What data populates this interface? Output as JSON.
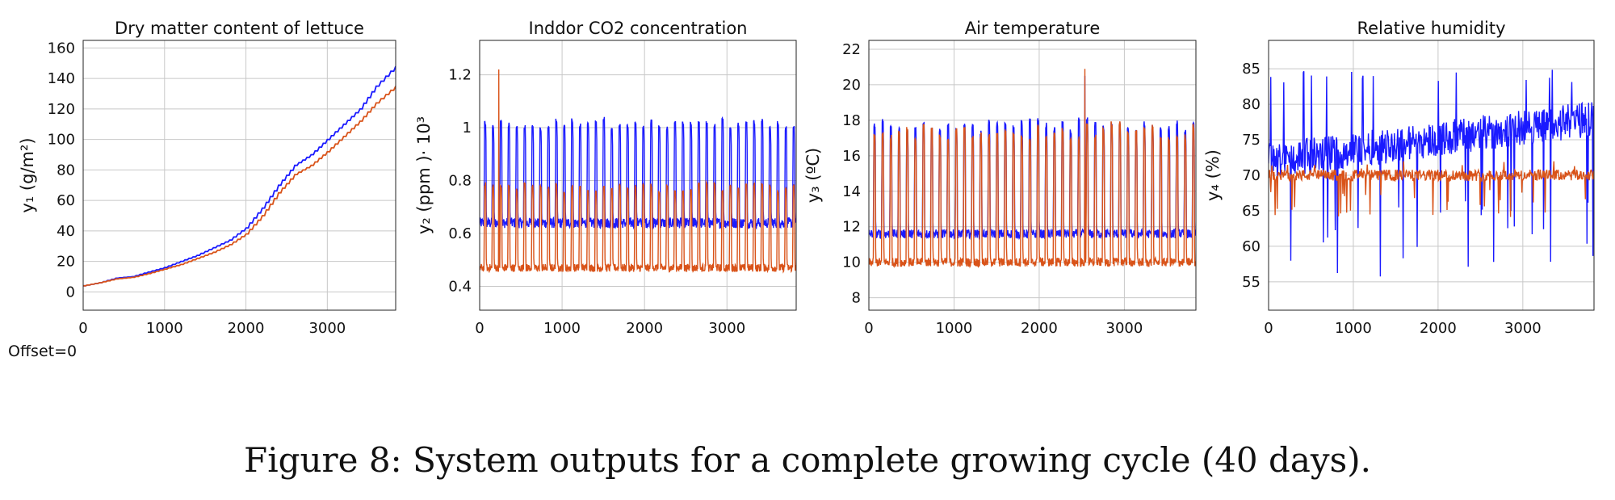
{
  "figure": {
    "caption": "Figure 8: System outputs for a complete growing cycle (40 days).",
    "offset_label": "Offset=0",
    "colors": {
      "blue": "#1a1aff",
      "orange": "#d95319",
      "grid": "#c8c8c8",
      "axis": "#222222"
    }
  },
  "chart_data": [
    {
      "type": "line",
      "title": "Dry matter content of lettuce",
      "ylabel": "y₁ (g/m²)",
      "xlim": [
        0,
        3840
      ],
      "ylim": [
        -12,
        165
      ],
      "xticks": [
        0,
        1000,
        2000,
        3000
      ],
      "yticks": [
        0,
        20,
        40,
        60,
        80,
        100,
        120,
        140,
        160
      ],
      "grid": true,
      "pattern": "staircase growth",
      "series": [
        {
          "color": "#1a1aff",
          "points": [
            [
              0,
              4
            ],
            [
              200,
              6
            ],
            [
              400,
              9
            ],
            [
              600,
              10
            ],
            [
              800,
              13
            ],
            [
              1000,
              16
            ],
            [
              1200,
              20
            ],
            [
              1400,
              24
            ],
            [
              1600,
              29
            ],
            [
              1800,
              34
            ],
            [
              2000,
              42
            ],
            [
              2200,
              55
            ],
            [
              2400,
              70
            ],
            [
              2600,
              83
            ],
            [
              2800,
              90
            ],
            [
              3000,
              100
            ],
            [
              3200,
              110
            ],
            [
              3400,
              120
            ],
            [
              3600,
              135
            ],
            [
              3840,
              148
            ]
          ]
        },
        {
          "color": "#d95319",
          "points": [
            [
              0,
              4
            ],
            [
              200,
              6
            ],
            [
              400,
              8.5
            ],
            [
              600,
              9.5
            ],
            [
              800,
              12
            ],
            [
              1000,
              15
            ],
            [
              1200,
              18
            ],
            [
              1400,
              22
            ],
            [
              1600,
              26
            ],
            [
              1800,
              31
            ],
            [
              2000,
              38
            ],
            [
              2200,
              50
            ],
            [
              2400,
              65
            ],
            [
              2600,
              77
            ],
            [
              2800,
              83
            ],
            [
              3000,
              92
            ],
            [
              3200,
              102
            ],
            [
              3400,
              112
            ],
            [
              3600,
              124
            ],
            [
              3840,
              135
            ]
          ]
        }
      ]
    },
    {
      "type": "line",
      "title": "Inddor CO2 concentration",
      "ylabel": "y₂ (ppm )· 10³",
      "xlim": [
        0,
        3840
      ],
      "ylim": [
        0.31,
        1.33
      ],
      "xticks": [
        0,
        1000,
        2000,
        3000
      ],
      "yticks": [
        0.4,
        0.6,
        0.8,
        1.0,
        1.2
      ],
      "ytick_labels": [
        "0.4",
        "0.6",
        "0.8",
        "1",
        "1.2"
      ],
      "grid": true,
      "pattern": "daily oscillation, 40 cycles",
      "series": [
        {
          "color": "#1a1aff",
          "base": 0.64,
          "peak": 1.02,
          "noise": 0.02
        },
        {
          "color": "#d95319",
          "base": 0.47,
          "peak": 0.78,
          "noise": 0.015,
          "max": 1.22
        }
      ]
    },
    {
      "type": "line",
      "title": "Air temperature",
      "ylabel": "y₃ (ºC)",
      "xlim": [
        0,
        3840
      ],
      "ylim": [
        7.3,
        22.5
      ],
      "xticks": [
        0,
        1000,
        2000,
        3000
      ],
      "yticks": [
        8,
        10,
        12,
        14,
        16,
        18,
        20,
        22
      ],
      "grid": true,
      "pattern": "daily oscillation, 40 cycles",
      "series": [
        {
          "color": "#1a1aff",
          "base": 11.6,
          "peak": 17.8,
          "noise": 0.25,
          "max": 20.5
        },
        {
          "color": "#d95319",
          "base": 10.0,
          "peak": 17.5,
          "noise": 0.25,
          "max": 20.9
        }
      ]
    },
    {
      "type": "line",
      "title": "Relative humidity",
      "ylabel": "y₄ (%)",
      "xlim": [
        0,
        3840
      ],
      "ylim": [
        51,
        89
      ],
      "xticks": [
        0,
        1000,
        2000,
        3000
      ],
      "yticks": [
        55,
        60,
        65,
        70,
        75,
        80,
        85
      ],
      "grid": true,
      "pattern": "noisy",
      "series": [
        {
          "color": "#1a1aff",
          "start": 72,
          "end": 78,
          "noise": 2.5,
          "min": 54,
          "max": 85
        },
        {
          "color": "#d95319",
          "base": 70,
          "noise": 0.8,
          "min": 64,
          "max": 72
        }
      ]
    }
  ]
}
